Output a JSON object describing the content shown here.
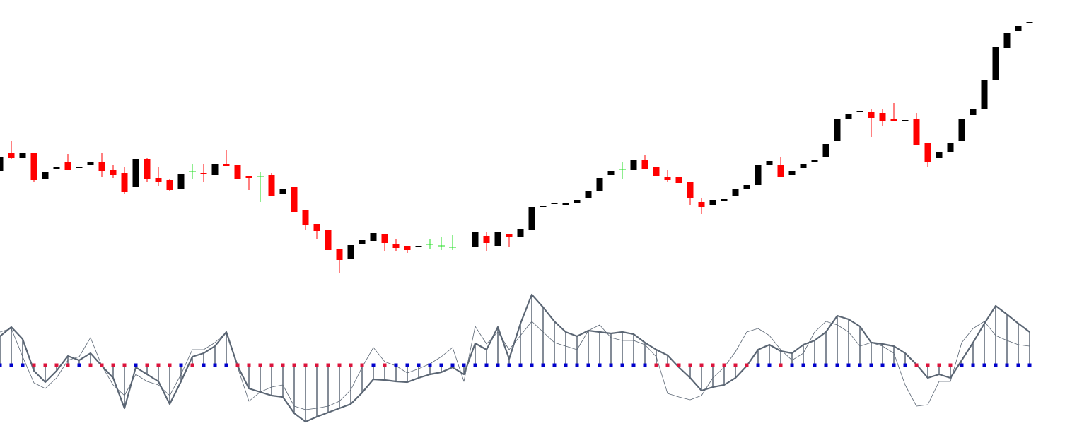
{
  "chart_data": [
    {
      "type": "candlestick",
      "up_color": "#000000",
      "down_color": "#ff0000",
      "doji_color": "#22dd22",
      "ylim": [
        0,
        400
      ],
      "open": [
        158,
        183,
        177,
        183,
        146,
        161,
        171,
        162,
        167,
        171,
        160,
        155,
        135,
        175,
        148,
        145,
        132,
        157,
        155,
        152,
        168,
        166,
        151,
        150,
        152,
        126,
        135,
        102,
        83,
        75,
        48,
        33,
        54,
        59,
        69,
        54,
        52,
        50,
        54,
        52,
        50,
        null,
        50,
        66,
        52,
        69,
        64,
        74,
        107,
        111,
        110,
        112,
        120,
        130,
        152,
        160,
        160,
        174,
        163,
        149,
        149,
        143,
        114,
        110,
        116,
        122,
        132,
        138,
        166,
        167,
        152,
        162,
        170,
        178,
        200,
        232,
        241,
        242,
        240,
        231,
        228,
        232,
        197,
        176,
        185,
        200,
        237,
        246,
        287,
        332,
        356,
        367
      ],
      "high": [
        178,
        200,
        183,
        183,
        157,
        163,
        182,
        164,
        171,
        184,
        167,
        163,
        175,
        177,
        163,
        147,
        153,
        168,
        168,
        168,
        188,
        166,
        151,
        157,
        155,
        133,
        135,
        102,
        83,
        75,
        48,
        53,
        60,
        70,
        69,
        62,
        52,
        52,
        62,
        64,
        68,
        null,
        72,
        72,
        71,
        69,
        76,
        107,
        109,
        113,
        112,
        117,
        130,
        148,
        158,
        170,
        174,
        180,
        163,
        160,
        149,
        143,
        119,
        117,
        118,
        132,
        138,
        166,
        172,
        178,
        158,
        168,
        174,
        196,
        232,
        239,
        243,
        245,
        245,
        254,
        230,
        240,
        197,
        185,
        198,
        231,
        245,
        287,
        333,
        353,
        363,
        369
      ],
      "low": [
        158,
        175,
        177,
        143,
        146,
        161,
        160,
        162,
        167,
        150,
        148,
        125,
        135,
        142,
        137,
        129,
        132,
        146,
        142,
        152,
        165,
        147,
        131,
        114,
        123,
        126,
        100,
        74,
        62,
        46,
        13,
        33,
        54,
        59,
        44,
        45,
        42,
        50,
        48,
        46,
        46,
        null,
        50,
        45,
        52,
        50,
        64,
        74,
        107,
        111,
        110,
        112,
        120,
        130,
        152,
        147,
        160,
        161,
        151,
        142,
        141,
        110,
        97,
        110,
        116,
        122,
        132,
        138,
        166,
        149,
        152,
        162,
        170,
        178,
        200,
        232,
        241,
        206,
        222,
        228,
        228,
        195,
        164,
        176,
        185,
        200,
        237,
        246,
        287,
        332,
        356,
        367
      ],
      "close": [
        178,
        177,
        183,
        145,
        157,
        163,
        160,
        164,
        171,
        158,
        152,
        128,
        175,
        146,
        143,
        131,
        153,
        157,
        153,
        168,
        165,
        147,
        148,
        150,
        123,
        133,
        100,
        82,
        73,
        46,
        32,
        53,
        60,
        70,
        56,
        49,
        46,
        52,
        54,
        52,
        50,
        null,
        72,
        56,
        71,
        64,
        76,
        107,
        109,
        113,
        112,
        117,
        130,
        148,
        158,
        160,
        174,
        161,
        151,
        145,
        141,
        120,
        107,
        117,
        118,
        132,
        138,
        166,
        172,
        149,
        158,
        168,
        174,
        196,
        232,
        239,
        243,
        233,
        228,
        228,
        230,
        195,
        171,
        185,
        198,
        231,
        245,
        287,
        333,
        353,
        363,
        369
      ]
    },
    {
      "type": "line",
      "ylim": [
        -100,
        120
      ],
      "histogram": true,
      "series": [
        {
          "color": "#5b6674",
          "values": [
            41,
            54,
            37,
            -8,
            -24,
            -8,
            13,
            7,
            17,
            -1,
            -18,
            -61,
            -3,
            -13,
            -23,
            -55,
            -23,
            12,
            17,
            27,
            47,
            -1,
            -33,
            -38,
            -43,
            -45,
            -68,
            -80,
            -73,
            -67,
            -61,
            -55,
            -39,
            -20,
            -21,
            -23,
            -24,
            -18,
            -13,
            -10,
            -3,
            -13,
            31,
            22,
            54,
            9,
            59,
            100,
            82,
            62,
            47,
            41,
            49,
            47,
            45,
            47,
            44,
            32,
            22,
            14,
            -3,
            -18,
            -36,
            -31,
            -28,
            -18,
            -1,
            22,
            29,
            20,
            17,
            29,
            35,
            47,
            70,
            65,
            55,
            32,
            30,
            27,
            17,
            1,
            -18,
            -13,
            -18,
            7,
            32,
            59,
            84,
            72,
            59,
            47
          ]
        },
        {
          "color": "#5b6674",
          "values": [
            47,
            52,
            12,
            -25,
            -33,
            -18,
            7,
            12,
            39,
            -1,
            -28,
            -43,
            -13,
            -23,
            -28,
            -43,
            -13,
            22,
            22,
            32,
            47,
            -3,
            -51,
            -38,
            -31,
            -28,
            -58,
            -63,
            -61,
            -58,
            -51,
            -35,
            -3,
            25,
            5,
            -1,
            -11,
            -5,
            2,
            12,
            25,
            -23,
            55,
            30,
            47,
            22,
            42,
            62,
            47,
            32,
            27,
            22,
            49,
            57,
            39,
            35,
            35,
            29,
            12,
            -40,
            -45,
            -49,
            -43,
            -18,
            -3,
            19,
            47,
            52,
            42,
            22,
            7,
            17,
            47,
            62,
            57,
            47,
            27,
            32,
            27,
            17,
            -28,
            -58,
            -56,
            -23,
            -23,
            32,
            52,
            62,
            42,
            35,
            29,
            27
          ]
        }
      ],
      "dot_colors": [
        "#0000cc",
        "#0000cc",
        "#0000cc",
        "#dc143c",
        "#dc143c",
        "#dc143c",
        "#dc143c",
        "#0000cc",
        "#dc143c",
        "#dc143c",
        "#dc143c",
        "#dc143c",
        "#0000cc",
        "#dc143c",
        "#dc143c",
        "#dc143c",
        "#0000cc",
        "#dc143c",
        "#0000cc",
        "#0000cc",
        "#0000cc",
        "#dc143c",
        "#dc143c",
        "#dc143c",
        "#dc143c",
        "#dc143c",
        "#dc143c",
        "#dc143c",
        "#dc143c",
        "#dc143c",
        "#dc143c",
        "#dc143c",
        "#dc143c",
        "#0000cc",
        "#dc143c",
        "#0000cc",
        "#0000cc",
        "#0000cc",
        "#0000cc",
        "#0000cc",
        "#0000cc",
        "#0000cc",
        "#0000cc",
        "#0000cc",
        "#0000cc",
        "#0000cc",
        "#0000cc",
        "#0000cc",
        "#0000cc",
        "#0000cc",
        "#0000cc",
        "#0000cc",
        "#0000cc",
        "#0000cc",
        "#0000cc",
        "#0000cc",
        "#0000cc",
        "#0000cc",
        "#dc143c",
        "#dc143c",
        "#dc143c",
        "#dc143c",
        "#dc143c",
        "#dc143c",
        "#dc143c",
        "#dc143c",
        "#dc143c",
        "#0000cc",
        "#0000cc",
        "#dc143c",
        "#0000cc",
        "#0000cc",
        "#0000cc",
        "#0000cc",
        "#0000cc",
        "#0000cc",
        "#0000cc",
        "#0000cc",
        "#0000cc",
        "#0000cc",
        "#0000cc",
        "#dc143c",
        "#dc143c",
        "#dc143c",
        "#dc143c",
        "#0000cc",
        "#0000cc",
        "#0000cc",
        "#0000cc",
        "#0000cc",
        "#0000cc",
        "#0000cc"
      ]
    }
  ]
}
